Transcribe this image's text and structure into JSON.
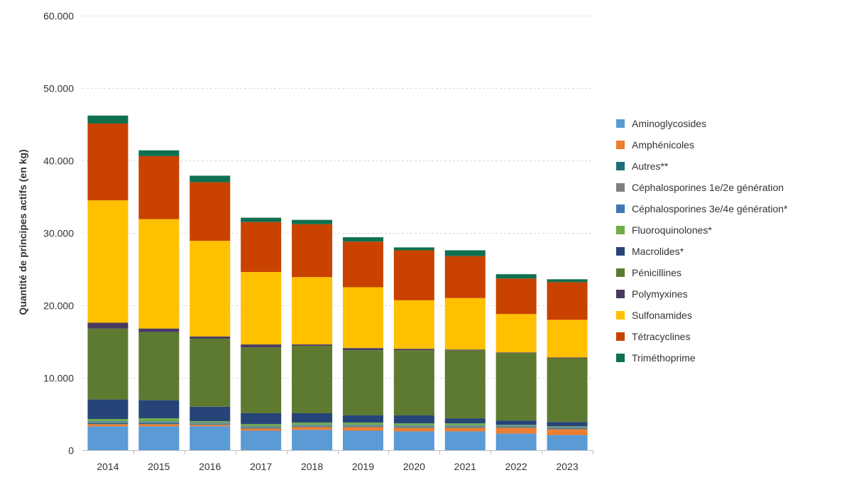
{
  "chart_data": {
    "type": "bar",
    "stacked": true,
    "title": "",
    "xlabel": "",
    "ylabel": "Quantité de principes actifs (en kg)",
    "ylim": [
      0,
      60000
    ],
    "yticks": [
      0,
      10000,
      20000,
      30000,
      40000,
      50000,
      60000
    ],
    "ytick_labels": [
      "0",
      "10.000",
      "20.000",
      "30.000",
      "40.000",
      "50.000",
      "60.000"
    ],
    "grid": "horizontal dashed",
    "legend_position": "right",
    "categories": [
      "2014",
      "2015",
      "2016",
      "2017",
      "2018",
      "2019",
      "2020",
      "2021",
      "2022",
      "2023"
    ],
    "series": [
      {
        "name": "Aminoglycosides",
        "color": "#5b9bd5",
        "values": [
          3300,
          3300,
          3300,
          2700,
          2800,
          2700,
          2600,
          2600,
          2300,
          2100
        ]
      },
      {
        "name": "Amphénicoles",
        "color": "#ed7d31",
        "values": [
          300,
          300,
          200,
          300,
          400,
          500,
          500,
          500,
          800,
          800
        ]
      },
      {
        "name": "Autres**",
        "color": "#1f6f7a",
        "values": [
          200,
          200,
          100,
          100,
          100,
          100,
          100,
          100,
          100,
          100
        ]
      },
      {
        "name": "Céphalosporines 1e/2e génération",
        "color": "#7f7f7f",
        "values": [
          100,
          100,
          100,
          100,
          100,
          100,
          100,
          100,
          100,
          100
        ]
      },
      {
        "name": "Céphalosporines 3e/4e génération*",
        "color": "#3f78b5",
        "values": [
          100,
          100,
          100,
          100,
          100,
          100,
          100,
          100,
          100,
          100
        ]
      },
      {
        "name": "Fluoroquinolones*",
        "color": "#70ad47",
        "values": [
          300,
          400,
          200,
          300,
          300,
          300,
          300,
          300,
          100,
          100
        ]
      },
      {
        "name": "Macrolides*",
        "color": "#264478",
        "values": [
          2700,
          2500,
          2000,
          1500,
          1300,
          1000,
          1100,
          700,
          600,
          600
        ]
      },
      {
        "name": "Pénicillines",
        "color": "#5e7a31",
        "values": [
          9800,
          9400,
          9400,
          9100,
          9300,
          9000,
          9000,
          9400,
          9300,
          8800
        ]
      },
      {
        "name": "Polymyxines",
        "color": "#483a5e",
        "values": [
          800,
          500,
          300,
          400,
          200,
          300,
          200,
          100,
          100,
          100
        ]
      },
      {
        "name": "Sulfonamides",
        "color": "#ffc000",
        "values": [
          16900,
          15100,
          13200,
          10000,
          9300,
          8400,
          6700,
          7100,
          5300,
          5200
        ]
      },
      {
        "name": "Tétracyclines",
        "color": "#c94200",
        "values": [
          10600,
          8700,
          8100,
          6900,
          7300,
          6300,
          6900,
          5800,
          4900,
          5200
        ]
      },
      {
        "name": "Triméthoprime",
        "color": "#0f7050",
        "values": [
          1100,
          800,
          900,
          600,
          600,
          600,
          400,
          800,
          600,
          400
        ]
      }
    ]
  }
}
